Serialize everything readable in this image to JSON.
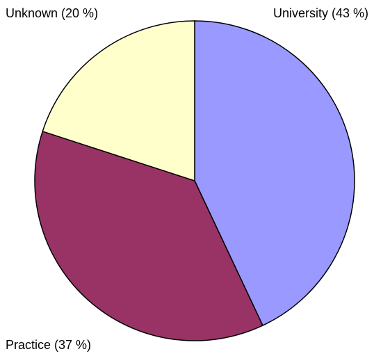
{
  "chart_data": {
    "type": "pie",
    "values": [
      43,
      37,
      20
    ],
    "value_labels": [
      "University (43 %)",
      "Practice (37 %)",
      "Unknown (20 %)"
    ],
    "colors": [
      "#9999ff",
      "#993366",
      "#ffffcc"
    ]
  }
}
